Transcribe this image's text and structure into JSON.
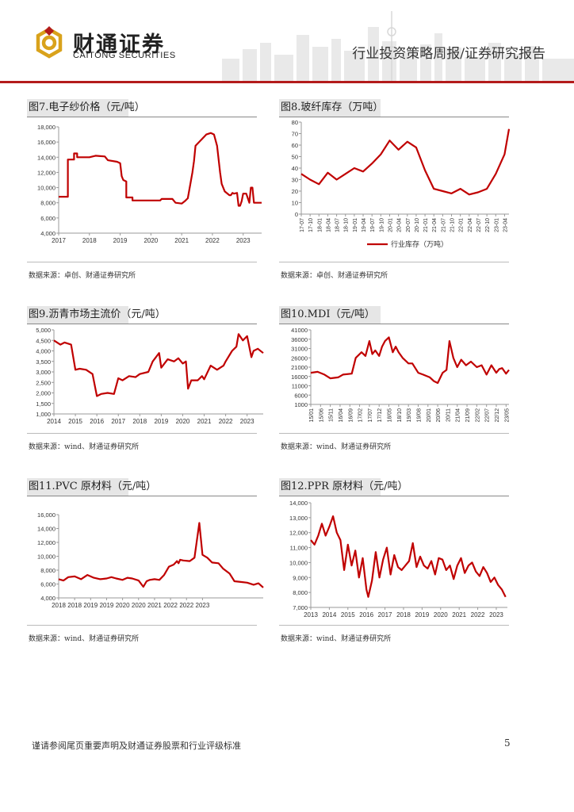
{
  "header": {
    "logo_cn": "财通证券",
    "logo_en": "CAITONG SECURITIES",
    "report_title": "行业投资策略周报/证券研究报告",
    "brand_color": "#b31b1b",
    "logo_gold": "#d9a21b"
  },
  "figures": [
    {
      "title": "图7.电子纱价格（元/吨）",
      "source": "数据来源：卓创、财通证券研究所"
    },
    {
      "title": "图8.玻纤库存（万吨）",
      "source": "数据来源：卓创、财通证券研究所"
    },
    {
      "title": "图9.沥青市场主流价（元/吨）",
      "source": "数据来源：wind、财通证券研究所"
    },
    {
      "title": "图10.MDI（元/吨）",
      "source": "数据来源：wind、财通证券研究所"
    },
    {
      "title": "图11.PVC 原材料（元/吨）",
      "source": "数据来源：wind、财通证券研究所"
    },
    {
      "title": "图12.PPR 原材料（元/吨）",
      "source": "数据来源：wind、财通证券研究所"
    }
  ],
  "footer": {
    "disclaimer": "谨请参阅尾页重要声明及财通证券股票和行业评级标准",
    "page_number": "5"
  },
  "chart_data": [
    {
      "type": "line",
      "color": "#c00000",
      "yticks": [
        "4,000",
        "6,000",
        "8,000",
        "10,000",
        "12,000",
        "14,000",
        "16,000",
        "18,000"
      ],
      "ylim": [
        4000,
        18000
      ],
      "xticks": [
        "2017",
        "2018",
        "2019",
        "2020",
        "2021",
        "2022",
        "2023"
      ],
      "xlim": [
        2017.0,
        2023.6
      ],
      "series": [
        {
          "x": [
            2017.0,
            2017.3,
            2017.3,
            2017.5,
            2017.5,
            2017.6,
            2017.6,
            2018.0,
            2018.2,
            2018.5,
            2018.6,
            2018.9,
            2019.0,
            2019.05,
            2019.1,
            2019.2,
            2019.2,
            2019.4,
            2019.4,
            2020.3,
            2020.35,
            2020.7,
            2020.8,
            2021.0,
            2021.1,
            2021.2,
            2021.35,
            2021.4,
            2021.45,
            2021.8,
            2021.95,
            2022.05,
            2022.15,
            2022.25,
            2022.3,
            2022.4,
            2022.55,
            2022.6,
            2022.65,
            2022.7,
            2022.8,
            2022.85,
            2022.9,
            2022.95,
            2023.0,
            2023.1,
            2023.2,
            2023.25,
            2023.3,
            2023.35,
            2023.6
          ],
          "y": [
            8800,
            8800,
            13700,
            13700,
            14500,
            14500,
            14000,
            14000,
            14200,
            14100,
            13600,
            13400,
            13200,
            11500,
            11000,
            10800,
            8700,
            8700,
            8300,
            8300,
            8500,
            8500,
            8000,
            7900,
            8200,
            8600,
            12000,
            13500,
            15500,
            17000,
            17200,
            17000,
            15500,
            12000,
            10500,
            9500,
            9000,
            9000,
            9300,
            9200,
            9300,
            7600,
            7600,
            8200,
            9200,
            9200,
            8000,
            10000,
            10000,
            8000,
            8000
          ]
        }
      ]
    },
    {
      "type": "line",
      "color": "#c00000",
      "legend": "行业库存（万吨）",
      "legend_position": "bottom",
      "yticks": [
        "0",
        "10",
        "20",
        "30",
        "40",
        "50",
        "60",
        "70",
        "80"
      ],
      "ylim": [
        0,
        80
      ],
      "xticks": [
        "17-07",
        "17-10",
        "18-01",
        "18-04",
        "18-07",
        "18-10",
        "19-01",
        "19-04",
        "19-07",
        "19-10",
        "20-01",
        "20-04",
        "20-07",
        "20-10",
        "21-01",
        "21-04",
        "21-07",
        "21-10",
        "22-01",
        "22-04",
        "22-07",
        "22-10",
        "23-01",
        "23-04"
      ],
      "series": [
        {
          "x": [
            0,
            1,
            2,
            3,
            4,
            5,
            6,
            7,
            8,
            9,
            10,
            11,
            12,
            13,
            14,
            15,
            16,
            17,
            18,
            19,
            20,
            21,
            22,
            23,
            23.5
          ],
          "y": [
            35,
            30,
            26,
            36,
            30,
            35,
            40,
            37,
            44,
            52,
            64,
            56,
            63,
            58,
            38,
            22,
            20,
            18,
            22,
            17,
            19,
            22,
            35,
            52,
            74
          ]
        }
      ]
    },
    {
      "type": "line",
      "color": "#c00000",
      "yticks": [
        "1,000",
        "1,500",
        "2,000",
        "2,500",
        "3,000",
        "3,500",
        "4,000",
        "4,500",
        "5,000"
      ],
      "ylim": [
        1000,
        5000
      ],
      "xticks": [
        "2014",
        "2015",
        "2016",
        "2017",
        "2018",
        "2019",
        "2020",
        "2021",
        "2022",
        "2023"
      ],
      "xlim": [
        2014.0,
        2023.75
      ],
      "series": [
        {
          "x": [
            2014.0,
            2014.3,
            2014.5,
            2014.8,
            2015.0,
            2015.2,
            2015.5,
            2015.8,
            2016.0,
            2016.2,
            2016.5,
            2016.8,
            2017.0,
            2017.2,
            2017.5,
            2017.8,
            2018.0,
            2018.4,
            2018.6,
            2018.9,
            2019.0,
            2019.3,
            2019.6,
            2019.8,
            2020.0,
            2020.15,
            2020.25,
            2020.4,
            2020.7,
            2020.9,
            2021.0,
            2021.3,
            2021.6,
            2021.9,
            2022.0,
            2022.3,
            2022.5,
            2022.6,
            2022.8,
            2023.0,
            2023.2,
            2023.3,
            2023.5,
            2023.75
          ],
          "y": [
            4500,
            4300,
            4400,
            4300,
            3100,
            3150,
            3100,
            2900,
            1850,
            1950,
            2000,
            1950,
            2700,
            2600,
            2800,
            2750,
            2900,
            3000,
            3500,
            3900,
            3200,
            3600,
            3500,
            3650,
            3400,
            3500,
            2200,
            2600,
            2600,
            2800,
            2650,
            3300,
            3100,
            3300,
            3500,
            4000,
            4200,
            4800,
            4500,
            4700,
            3700,
            4000,
            4100,
            3900
          ]
        }
      ]
    },
    {
      "type": "line",
      "color": "#c00000",
      "yticks": [
        "1000",
        "6000",
        "11000",
        "16000",
        "21000",
        "26000",
        "31000",
        "36000",
        "41000"
      ],
      "ylim": [
        1000,
        41000
      ],
      "xticks": [
        "15/01",
        "15/06",
        "15/11",
        "16/04",
        "16/09",
        "17/02",
        "17/07",
        "17/12",
        "18/05",
        "18/10",
        "19/03",
        "19/08",
        "20/01",
        "20/06",
        "20/11",
        "21/04",
        "21/09",
        "22/02",
        "22/07",
        "22/12",
        "23/05"
      ],
      "series": [
        {
          "x": [
            0,
            0.7,
            1.4,
            2.0,
            2.8,
            3.3,
            4.2,
            4.6,
            5.2,
            5.6,
            6.0,
            6.3,
            6.6,
            7.0,
            7.3,
            7.6,
            8.0,
            8.4,
            8.7,
            9.0,
            9.4,
            10.0,
            10.4,
            11.0,
            11.5,
            12.2,
            12.6,
            13.0,
            13.5,
            13.9,
            14.2,
            14.6,
            15.0,
            15.4,
            15.9,
            16.4,
            17.0,
            17.5,
            18.0,
            18.5,
            19.0,
            19.3,
            19.6,
            20.0,
            20.3
          ],
          "y": [
            18000,
            18500,
            17000,
            15000,
            15500,
            17000,
            17500,
            26000,
            29000,
            27000,
            35000,
            28000,
            30000,
            27000,
            32000,
            35000,
            37000,
            29000,
            32000,
            29000,
            26000,
            23000,
            23000,
            18000,
            17000,
            15500,
            13500,
            12500,
            18000,
            19500,
            35000,
            26000,
            21000,
            25000,
            22000,
            24000,
            21000,
            22000,
            17000,
            22000,
            18000,
            20000,
            20500,
            17500,
            19500
          ]
        }
      ]
    },
    {
      "type": "line",
      "color": "#c00000",
      "yticks": [
        "4,000",
        "6,000",
        "8,000",
        "10,000",
        "12,000",
        "14,000",
        "16,000"
      ],
      "ylim": [
        4000,
        16000
      ],
      "xticks": [
        "2018",
        "2018",
        "2019",
        "2019",
        "2020",
        "2020",
        "2021",
        "2022",
        "2022",
        "2023"
      ],
      "series": [
        {
          "x": [
            0,
            0.3,
            0.6,
            1.0,
            1.4,
            1.8,
            2.2,
            2.6,
            3.0,
            3.3,
            3.6,
            4.0,
            4.3,
            4.6,
            5.0,
            5.3,
            5.5,
            5.7,
            6.0,
            6.3,
            6.6,
            6.9,
            7.2,
            7.4,
            7.5,
            7.6,
            7.8,
            8.2,
            8.5,
            8.8,
            9.0,
            9.3,
            9.6,
            10.0,
            10.3,
            10.7,
            11.0,
            11.4,
            11.8,
            12.2,
            12.5,
            12.8
          ],
          "y": [
            6700,
            6500,
            7000,
            7100,
            6700,
            7300,
            6900,
            6700,
            6800,
            7000,
            6800,
            6600,
            6900,
            6800,
            6500,
            5600,
            6400,
            6600,
            6700,
            6600,
            7300,
            8500,
            8800,
            9300,
            9000,
            9500,
            9400,
            9300,
            9800,
            14800,
            10200,
            9800,
            9100,
            9000,
            8200,
            7500,
            6400,
            6300,
            6200,
            5900,
            6100,
            5500
          ]
        }
      ]
    },
    {
      "type": "line",
      "color": "#c00000",
      "yticks": [
        "7,000",
        "8,000",
        "9,000",
        "10,000",
        "11,000",
        "12,000",
        "13,000",
        "14,000"
      ],
      "ylim": [
        7000,
        14000
      ],
      "xticks": [
        "2013",
        "2014",
        "2015",
        "2016",
        "2017",
        "2018",
        "2019",
        "2020",
        "2021",
        "2022",
        "2023"
      ],
      "xlim": [
        2013.0,
        2023.6
      ],
      "series": [
        {
          "x": [
            2013.0,
            2013.2,
            2013.4,
            2013.6,
            2013.8,
            2014.0,
            2014.2,
            2014.4,
            2014.6,
            2014.8,
            2015.0,
            2015.2,
            2015.4,
            2015.6,
            2015.8,
            2016.0,
            2016.1,
            2016.3,
            2016.5,
            2016.7,
            2016.9,
            2017.1,
            2017.3,
            2017.5,
            2017.7,
            2017.9,
            2018.1,
            2018.3,
            2018.5,
            2018.7,
            2018.9,
            2019.1,
            2019.3,
            2019.5,
            2019.7,
            2019.9,
            2020.1,
            2020.3,
            2020.5,
            2020.7,
            2020.9,
            2021.1,
            2021.3,
            2021.5,
            2021.7,
            2021.9,
            2022.1,
            2022.3,
            2022.5,
            2022.7,
            2022.9,
            2023.1,
            2023.3,
            2023.5
          ],
          "y": [
            11500,
            11200,
            11800,
            12600,
            11800,
            12400,
            13100,
            12000,
            11500,
            9500,
            11200,
            9800,
            10800,
            9000,
            10300,
            8200,
            7700,
            8800,
            10700,
            9000,
            10200,
            11000,
            9200,
            10500,
            9700,
            9500,
            9800,
            10100,
            11300,
            9700,
            10400,
            9800,
            9600,
            10100,
            9200,
            10300,
            10200,
            9500,
            9800,
            8900,
            9800,
            10300,
            9300,
            9800,
            10000,
            9400,
            9100,
            9700,
            9300,
            8700,
            9000,
            8500,
            8200,
            7700
          ]
        }
      ]
    }
  ]
}
